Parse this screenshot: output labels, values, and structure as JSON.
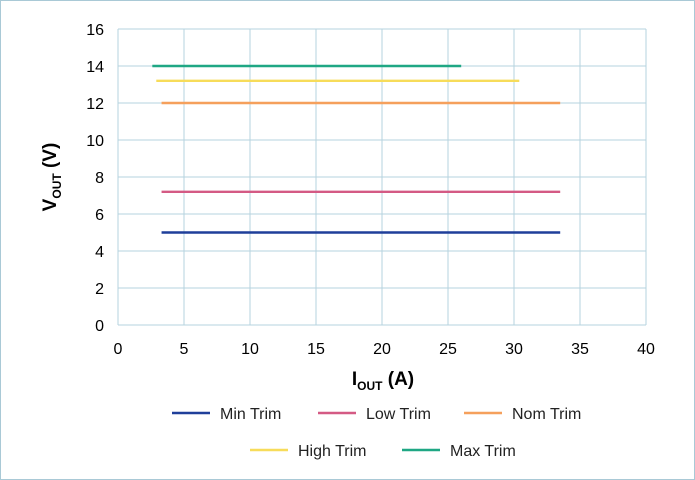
{
  "chart_data": {
    "type": "line",
    "title": "",
    "xlabel": {
      "main": "I",
      "sub": "OUT",
      "unit": " (A)"
    },
    "ylabel": {
      "main": "V",
      "sub": "OUT",
      "unit": " (V)"
    },
    "xlim": [
      0,
      40
    ],
    "ylim": [
      0,
      16
    ],
    "xticks": [
      0,
      5,
      10,
      15,
      20,
      25,
      30,
      35,
      40
    ],
    "yticks": [
      0,
      2,
      4,
      6,
      8,
      10,
      12,
      14,
      16
    ],
    "grid": true,
    "legend_position": "bottom",
    "series": [
      {
        "name": "Min Trim",
        "color": "#1f3f9a",
        "x": [
          3.3,
          33.5
        ],
        "y": [
          5.0,
          5.0
        ]
      },
      {
        "name": "Low Trim",
        "color": "#d45a84",
        "x": [
          3.3,
          33.5
        ],
        "y": [
          7.2,
          7.2
        ]
      },
      {
        "name": "Nom Trim",
        "color": "#f5a05c",
        "x": [
          3.3,
          33.5
        ],
        "y": [
          12.0,
          12.0
        ]
      },
      {
        "name": "High Trim",
        "color": "#f7dc5a",
        "x": [
          2.9,
          30.4
        ],
        "y": [
          13.2,
          13.2
        ]
      },
      {
        "name": "Max Trim",
        "color": "#1fa784",
        "x": [
          2.6,
          26.0
        ],
        "y": [
          14.0,
          14.0
        ]
      }
    ]
  }
}
